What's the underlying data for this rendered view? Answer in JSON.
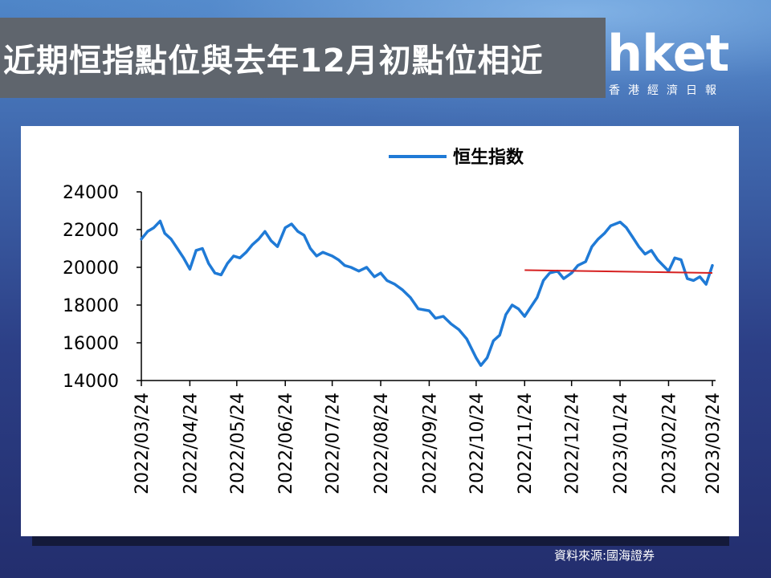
{
  "header": {
    "title": "近期恒指點位與去年12月初點位相近"
  },
  "logo": {
    "wordmark": "hket",
    "subtitle": "香港經濟日報"
  },
  "source_note": "資料來源:國海證券",
  "colors": {
    "series_line": "#1f7ad6",
    "reference_line": "#d62020",
    "title_bar": "#5f656d"
  },
  "chart_data": {
    "type": "line",
    "legend_position": "top-center",
    "grid": false,
    "ylim": [
      14000,
      24000
    ],
    "yticks": [
      "24000",
      "22000",
      "20000",
      "18000",
      "16000",
      "14000"
    ],
    "yticks_values": [
      24000,
      22000,
      20000,
      18000,
      16000,
      14000
    ],
    "xticks": [
      "2022/03/24",
      "2022/04/24",
      "2022/05/24",
      "2022/06/24",
      "2022/07/24",
      "2022/08/24",
      "2022/09/24",
      "2022/10/24",
      "2022/11/24",
      "2022/12/24",
      "2023/01/24",
      "2023/02/24",
      "2023/03/24"
    ],
    "series": [
      {
        "name": "恒生指数",
        "x": [
          "2022-03-24",
          "2022-03-28",
          "2022-04-01",
          "2022-04-05",
          "2022-04-08",
          "2022-04-12",
          "2022-04-16",
          "2022-04-20",
          "2022-04-24",
          "2022-04-28",
          "2022-05-02",
          "2022-05-06",
          "2022-05-10",
          "2022-05-14",
          "2022-05-18",
          "2022-05-22",
          "2022-05-26",
          "2022-05-30",
          "2022-06-03",
          "2022-06-07",
          "2022-06-11",
          "2022-06-15",
          "2022-06-19",
          "2022-06-24",
          "2022-06-28",
          "2022-07-02",
          "2022-07-06",
          "2022-07-10",
          "2022-07-14",
          "2022-07-18",
          "2022-07-24",
          "2022-07-28",
          "2022-08-01",
          "2022-08-05",
          "2022-08-10",
          "2022-08-15",
          "2022-08-20",
          "2022-08-24",
          "2022-08-28",
          "2022-09-02",
          "2022-09-07",
          "2022-09-12",
          "2022-09-17",
          "2022-09-24",
          "2022-09-28",
          "2022-10-03",
          "2022-10-08",
          "2022-10-13",
          "2022-10-18",
          "2022-10-24",
          "2022-10-27",
          "2022-10-31",
          "2022-11-04",
          "2022-11-08",
          "2022-11-12",
          "2022-11-16",
          "2022-11-20",
          "2022-11-24",
          "2022-11-28",
          "2022-12-02",
          "2022-12-06",
          "2022-12-10",
          "2022-12-15",
          "2022-12-19",
          "2022-12-24",
          "2022-12-28",
          "2023-01-02",
          "2023-01-06",
          "2023-01-10",
          "2023-01-14",
          "2023-01-18",
          "2023-01-24",
          "2023-01-28",
          "2023-02-01",
          "2023-02-05",
          "2023-02-09",
          "2023-02-13",
          "2023-02-17",
          "2023-02-24",
          "2023-02-28",
          "2023-03-04",
          "2023-03-08",
          "2023-03-12",
          "2023-03-16",
          "2023-03-20",
          "2023-03-24"
        ],
        "values": [
          21500,
          21900,
          22100,
          22450,
          21800,
          21500,
          21000,
          20500,
          19900,
          20900,
          21000,
          20200,
          19700,
          19600,
          20200,
          20600,
          20500,
          20800,
          21200,
          21500,
          21900,
          21400,
          21100,
          22100,
          22300,
          21900,
          21700,
          21000,
          20600,
          20800,
          20600,
          20400,
          20100,
          20000,
          19800,
          20000,
          19500,
          19700,
          19300,
          19100,
          18800,
          18400,
          17800,
          17700,
          17300,
          17400,
          17000,
          16700,
          16200,
          15200,
          14800,
          15200,
          16100,
          16400,
          17500,
          18000,
          17800,
          17400,
          17900,
          18400,
          19300,
          19700,
          19800,
          19400,
          19700,
          20100,
          20300,
          21100,
          21500,
          21800,
          22200,
          22400,
          22100,
          21600,
          21100,
          20700,
          20900,
          20400,
          19800,
          20500,
          20400,
          19400,
          19300,
          19500,
          19100,
          20100
        ]
      }
    ],
    "reference_line": {
      "start": [
        "2022-11-24",
        19850
      ],
      "end": [
        "2023-03-24",
        19700
      ]
    }
  }
}
